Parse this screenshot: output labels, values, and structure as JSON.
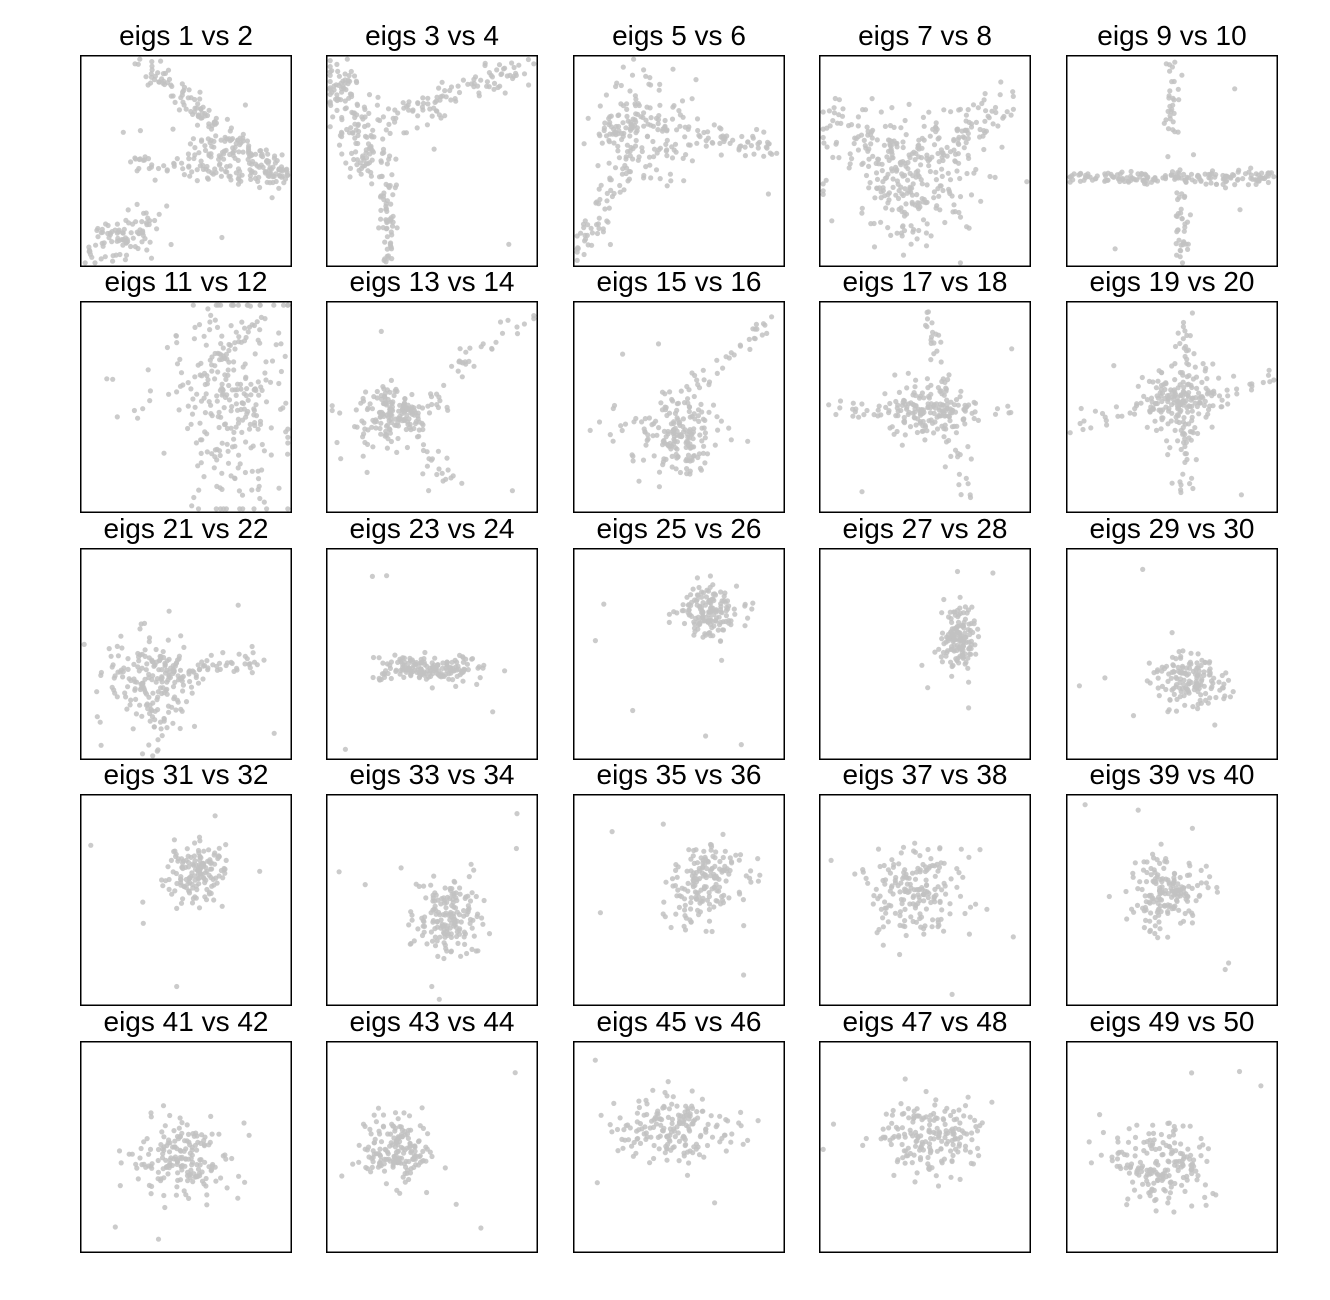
{
  "colors": {
    "point": "#c2c2c2",
    "frame": "#000000",
    "title": "#000000"
  },
  "chart_data": [
    {
      "type": "scatter",
      "title": "eigs 1 vs 2",
      "pattern": "three-arms"
    },
    {
      "type": "scatter",
      "title": "eigs 3 vs 4",
      "pattern": "three-arms"
    },
    {
      "type": "scatter",
      "title": "eigs 5 vs 6",
      "pattern": "three-arms"
    },
    {
      "type": "scatter",
      "title": "eigs 7 vs 8",
      "pattern": "butterfly"
    },
    {
      "type": "scatter",
      "title": "eigs 9 vs 10",
      "pattern": "cross"
    },
    {
      "type": "scatter",
      "title": "eigs 11 vs 12",
      "pattern": "vertical-blob"
    },
    {
      "type": "scatter",
      "title": "eigs 13 vs 14",
      "pattern": "three-arms"
    },
    {
      "type": "scatter",
      "title": "eigs 15 vs 16",
      "pattern": "two-arms"
    },
    {
      "type": "scatter",
      "title": "eigs 17 vs 18",
      "pattern": "cross"
    },
    {
      "type": "scatter",
      "title": "eigs 19 vs 20",
      "pattern": "cross"
    },
    {
      "type": "scatter",
      "title": "eigs 21 vs 22",
      "pattern": "blob-with-arm"
    },
    {
      "type": "scatter",
      "title": "eigs 23 vs 24",
      "pattern": "horizontal-ellipse"
    },
    {
      "type": "scatter",
      "title": "eigs 25 vs 26",
      "pattern": "blob"
    },
    {
      "type": "scatter",
      "title": "eigs 27 vs 28",
      "pattern": "blob"
    },
    {
      "type": "scatter",
      "title": "eigs 29 vs 30",
      "pattern": "blob"
    },
    {
      "type": "scatter",
      "title": "eigs 31 vs 32",
      "pattern": "blob"
    },
    {
      "type": "scatter",
      "title": "eigs 33 vs 34",
      "pattern": "blob"
    },
    {
      "type": "scatter",
      "title": "eigs 35 vs 36",
      "pattern": "blob"
    },
    {
      "type": "scatter",
      "title": "eigs 37 vs 38",
      "pattern": "blob"
    },
    {
      "type": "scatter",
      "title": "eigs 39 vs 40",
      "pattern": "blob"
    },
    {
      "type": "scatter",
      "title": "eigs 41 vs 42",
      "pattern": "blob"
    },
    {
      "type": "scatter",
      "title": "eigs 43 vs 44",
      "pattern": "blob"
    },
    {
      "type": "scatter",
      "title": "eigs 45 vs 46",
      "pattern": "blob"
    },
    {
      "type": "scatter",
      "title": "eigs 47 vs 48",
      "pattern": "blob"
    },
    {
      "type": "scatter",
      "title": "eigs 49 vs 50",
      "pattern": "blob"
    }
  ]
}
